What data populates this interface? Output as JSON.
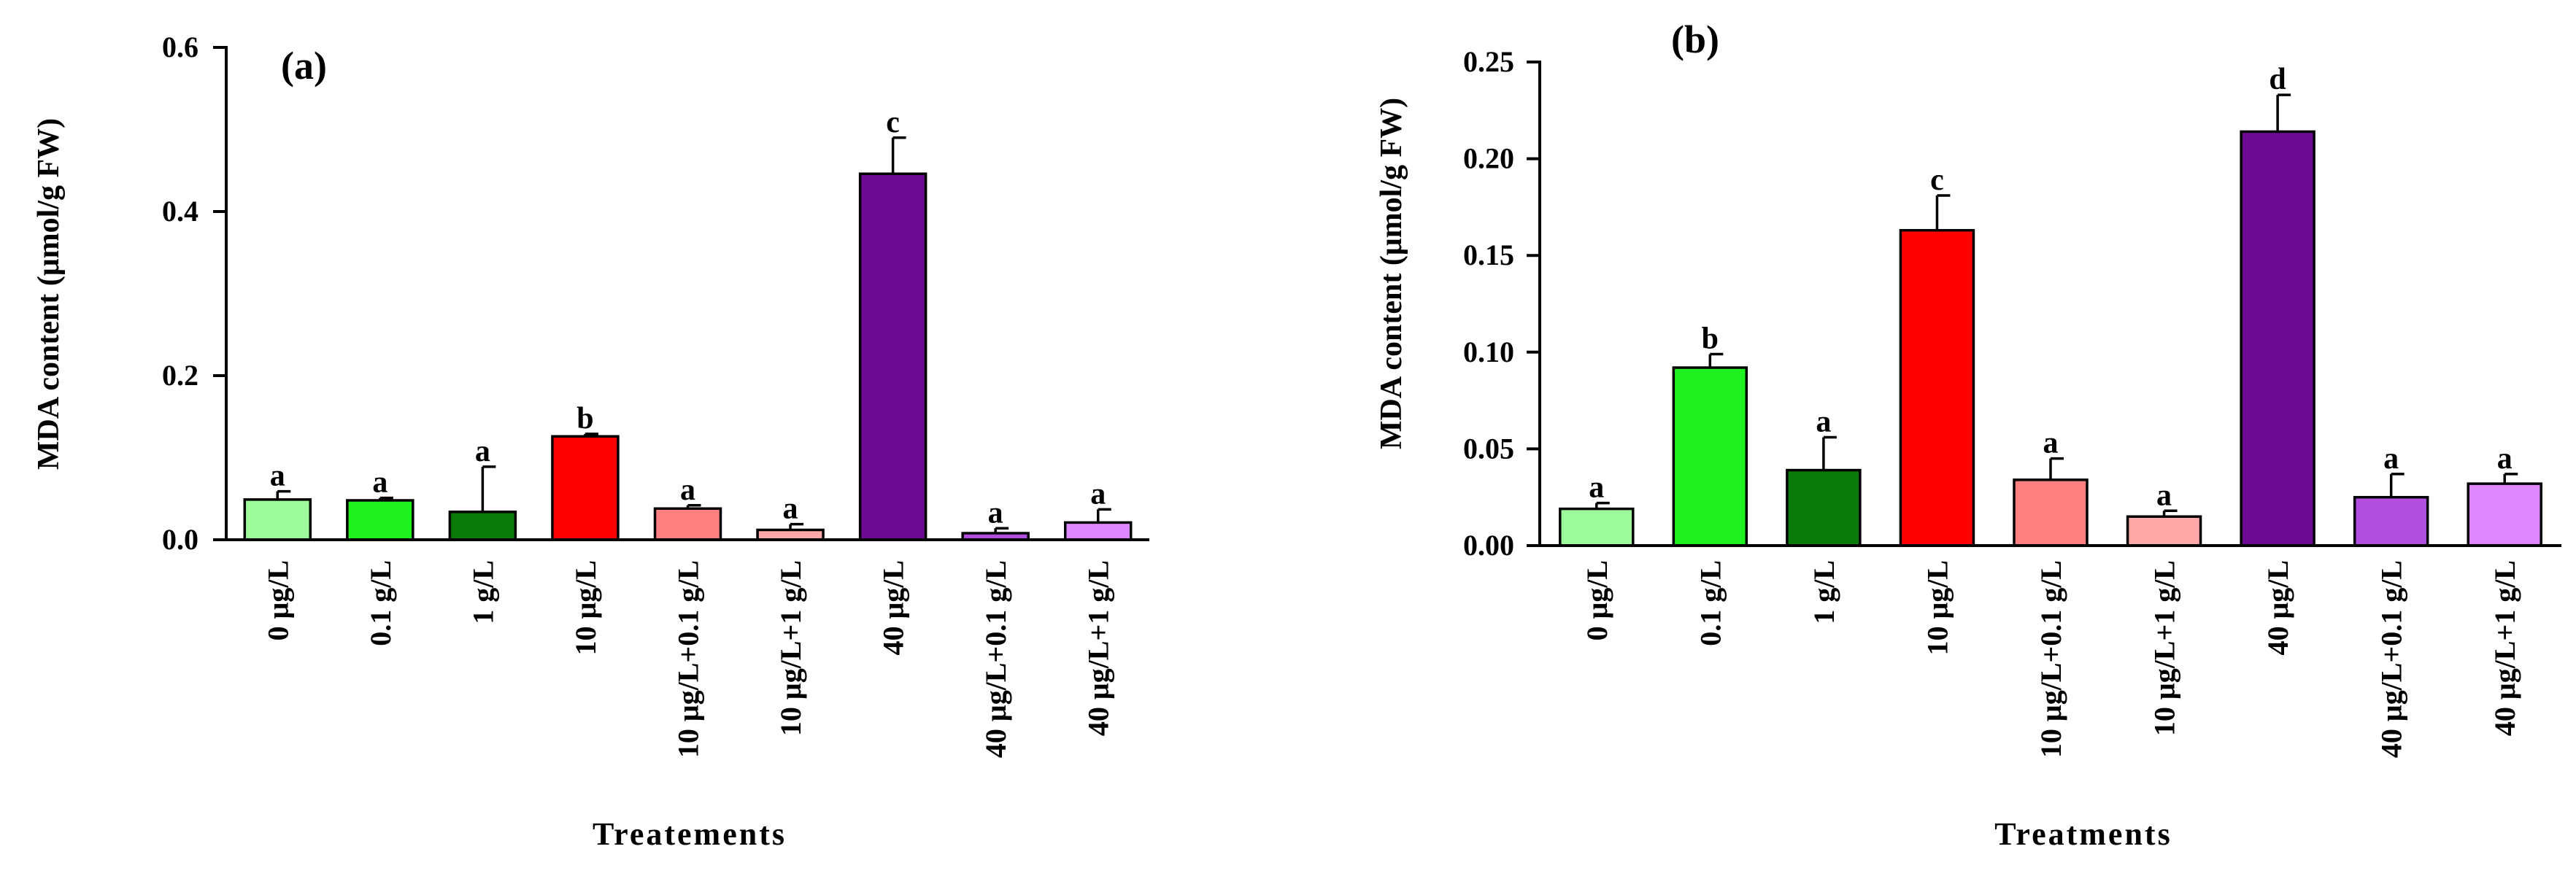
{
  "chart_data": [
    {
      "type": "bar",
      "panel_label": "(a)",
      "title": "",
      "xlabel": "Treatements",
      "ylabel": "MDA content (μmol/g FW)",
      "ylim": [
        0,
        0.6
      ],
      "yticks": [
        0.0,
        0.2,
        0.4,
        0.6
      ],
      "ytick_labels": [
        "0.0",
        "0.2",
        "0.4",
        "0.6"
      ],
      "grid": false,
      "categories": [
        "0 μg/L",
        "0.1 g/L",
        "1 g/L",
        "10 μg/L",
        "10 μg/L+0.1 g/L",
        "10 μg/L+1 g/L",
        "40 μg/L",
        "40 μg/L+0.1 g/L",
        "40 μg/L+1 g/L"
      ],
      "values": [
        0.049,
        0.048,
        0.034,
        0.126,
        0.038,
        0.012,
        0.446,
        0.008,
        0.021
      ],
      "errors": [
        0.01,
        0.003,
        0.055,
        0.003,
        0.004,
        0.007,
        0.044,
        0.006,
        0.016
      ],
      "letters": [
        "a",
        "a",
        "a",
        "b",
        "a",
        "a",
        "c",
        "a",
        "a"
      ],
      "colors": [
        "#9dfa9d",
        "#1ff21f",
        "#0a7a0a",
        "#ff0000",
        "#ff8080",
        "#ffa8a8",
        "#6d0a94",
        "#b04fe0",
        "#dd88ff"
      ]
    },
    {
      "type": "bar",
      "panel_label": "(b)",
      "title": "",
      "xlabel": "Treatments",
      "ylabel": "MDA content (μmol/g FW)",
      "ylim": [
        0,
        0.25
      ],
      "yticks": [
        0.0,
        0.05,
        0.1,
        0.15,
        0.2,
        0.25
      ],
      "ytick_labels": [
        "0.00",
        "0.05",
        "0.10",
        "0.15",
        "0.20",
        "0.25"
      ],
      "grid": false,
      "categories": [
        "0 μg/L",
        "0.1 g/L",
        "1 g/L",
        "10 μg/L",
        "10 μg/L+0.1 g/L",
        "10 μg/L+1 g/L",
        "40 μg/L",
        "40 μg/L+0.1 g/L",
        "40 μg/L+1 g/L"
      ],
      "values": [
        0.019,
        0.092,
        0.039,
        0.163,
        0.034,
        0.015,
        0.214,
        0.025,
        0.032
      ],
      "errors": [
        0.003,
        0.007,
        0.017,
        0.018,
        0.011,
        0.003,
        0.019,
        0.012,
        0.005
      ],
      "letters": [
        "a",
        "b",
        "a",
        "c",
        "a",
        "a",
        "d",
        "a",
        "a"
      ],
      "colors": [
        "#9dfa9d",
        "#1ff21f",
        "#0a7a0a",
        "#ff0000",
        "#ff8080",
        "#ffa8a8",
        "#6d0a94",
        "#b04fe0",
        "#dd88ff"
      ]
    }
  ]
}
